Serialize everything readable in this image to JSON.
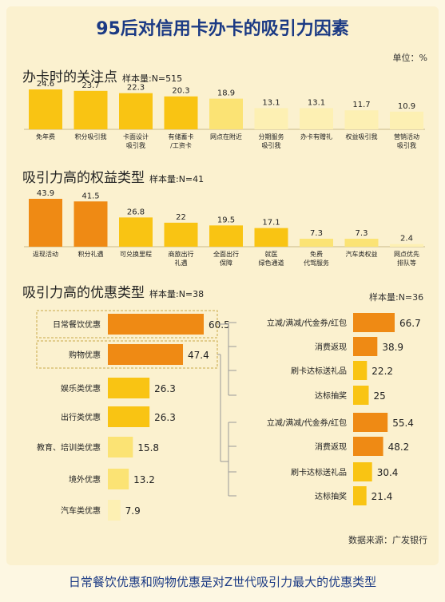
{
  "title": "95后对信用卡办卡的吸引力因素",
  "unit_label": "单位：%",
  "source": "数据来源：广发银行",
  "footer": "日常餐饮优惠和购物优惠是对Z世代吸引力最大的优惠类型",
  "colors": {
    "orange": "#ef8a14",
    "yellow": "#f9c413",
    "light_yellow": "#fbe374",
    "pale": "#fdf0b3",
    "navy": "#1b3a84",
    "connector": "#999999"
  },
  "chart_data": [
    {
      "type": "bar",
      "title": "办卡时的关注点",
      "sample_label": "样本量:N=515",
      "categories": [
        "免年费",
        "积分吸引我",
        "卡面设计\n吸引我",
        "有储蓄卡\n/工资卡",
        "网点在附近",
        "分期服务\n吸引我",
        "办卡有赠礼",
        "权益吸引我",
        "营销活动\n吸引我"
      ],
      "values": [
        24.6,
        23.7,
        22.3,
        20.3,
        18.9,
        13.1,
        13.1,
        11.7,
        10.9
      ]
    },
    {
      "type": "bar",
      "title": "吸引力高的权益类型",
      "sample_label": "样本量:N=41",
      "categories": [
        "返现活动",
        "积分礼遇",
        "可兑换里程",
        "商旅出行\n礼遇",
        "全面出行\n保障",
        "就医\n绿色通道",
        "免费\n代驾服务",
        "汽车类权益",
        "网点优先\n排队等"
      ],
      "values": [
        43.9,
        41.5,
        26.8,
        22,
        19.5,
        17.1,
        7.3,
        7.3,
        2.4
      ]
    },
    {
      "type": "bar",
      "orientation": "horizontal",
      "title": "吸引力高的优惠类型",
      "sample_label": "样本量:N=38",
      "categories": [
        "日常餐饮优惠",
        "购物优惠",
        "娱乐类优惠",
        "出行类优惠",
        "教育、培训类优惠",
        "境外优惠",
        "汽车类优惠"
      ],
      "values": [
        60.5,
        47.4,
        26.3,
        26.3,
        15.8,
        13.2,
        7.9
      ]
    },
    {
      "type": "bar",
      "orientation": "horizontal",
      "sample_label": "样本量:N=36",
      "groups": [
        {
          "parent": "日常餐饮优惠",
          "categories": [
            "立减/满减/代金券/红包",
            "消费返现",
            "刷卡达标送礼品",
            "达标抽奖"
          ],
          "values": [
            66.7,
            38.9,
            22.2,
            25
          ]
        },
        {
          "parent": "购物优惠",
          "categories": [
            "立减/满减/代金券/红包",
            "消费返现",
            "刷卡达标送礼品",
            "达标抽奖"
          ],
          "values": [
            55.4,
            48.2,
            30.4,
            21.4
          ]
        }
      ]
    }
  ]
}
